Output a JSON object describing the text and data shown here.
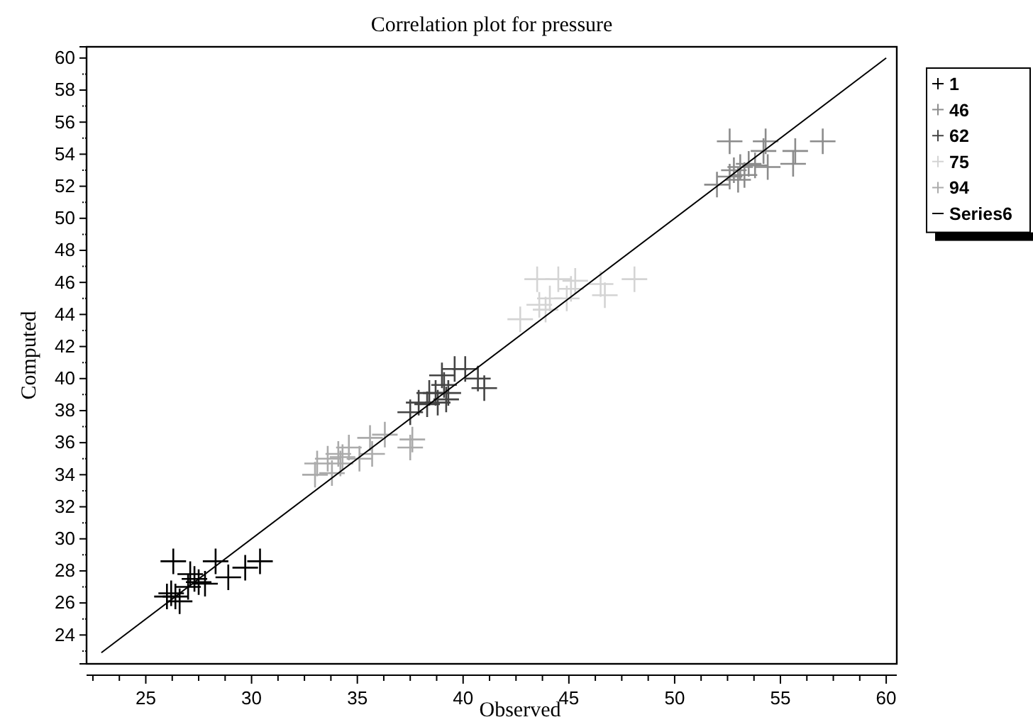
{
  "chart_data": {
    "type": "scatter",
    "title": "Correlation plot for pressure",
    "xlabel": "Observed",
    "ylabel": "Computed",
    "marker": "cross",
    "legend": "top right",
    "grid": false,
    "xlim": [
      22.2,
      60.5
    ],
    "ylim": [
      22.2,
      60.7
    ],
    "xticks": [
      {
        "value": 22.5,
        "label": null
      },
      {
        "value": 23.75,
        "label": null
      },
      25,
      {
        "value": 26.25,
        "label": null
      },
      {
        "value": 27.5,
        "label": null
      },
      {
        "value": 28.75,
        "label": null
      },
      30,
      {
        "value": 31.25,
        "label": null
      },
      {
        "value": 32.5,
        "label": null
      },
      {
        "value": 33.75,
        "label": null
      },
      35,
      {
        "value": 36.25,
        "label": null
      },
      {
        "value": 37.5,
        "label": null
      },
      {
        "value": 38.75,
        "label": null
      },
      40,
      {
        "value": 41.25,
        "label": null
      },
      {
        "value": 42.5,
        "label": null
      },
      {
        "value": 43.75,
        "label": null
      },
      45,
      {
        "value": 46.25,
        "label": null
      },
      {
        "value": 47.5,
        "label": null
      },
      {
        "value": 48.75,
        "label": null
      },
      50,
      {
        "value": 51.25,
        "label": null
      },
      {
        "value": 52.5,
        "label": null
      },
      {
        "value": 53.75,
        "label": null
      },
      55,
      {
        "value": 56.25,
        "label": null
      },
      {
        "value": 57.5,
        "label": null
      },
      {
        "value": 58.75,
        "label": null
      },
      60
    ],
    "yticks": [
      {
        "value": 23,
        "label": null
      },
      24,
      {
        "value": 25,
        "label": null
      },
      26,
      {
        "value": 27,
        "label": null
      },
      28,
      {
        "value": 29,
        "label": null
      },
      30,
      {
        "value": 31,
        "label": null
      },
      32,
      {
        "value": 33,
        "label": null
      },
      34,
      {
        "value": 35,
        "label": null
      },
      36,
      {
        "value": 37,
        "label": null
      },
      38,
      {
        "value": 39,
        "label": null
      },
      40,
      {
        "value": 41,
        "label": null
      },
      42,
      {
        "value": 43,
        "label": null
      },
      44,
      {
        "value": 45,
        "label": null
      },
      46,
      {
        "value": 47,
        "label": null
      },
      48,
      {
        "value": 49,
        "label": null
      },
      50,
      {
        "value": 51,
        "label": null
      },
      52,
      {
        "value": 53,
        "label": null
      },
      54,
      {
        "value": 55,
        "label": null
      },
      56,
      {
        "value": 57,
        "label": null
      },
      58,
      {
        "value": 59,
        "label": null
      },
      60
    ],
    "series": [
      {
        "name": "1",
        "color": "#000000",
        "x": [
          26.3,
          28.3,
          30.4,
          29.7,
          28.9,
          27.1,
          27.5,
          27.0,
          26.4,
          26.6,
          26.2,
          27.8,
          27.3,
          26.0
        ],
        "values": [
          28.6,
          28.6,
          28.6,
          28.2,
          27.6,
          27.8,
          27.3,
          27.0,
          26.4,
          26.1,
          26.6,
          27.2,
          27.5,
          26.4
        ]
      },
      {
        "name": "46",
        "color": "#8c8c8c",
        "x": [
          52.6,
          54.3,
          54.2,
          57.0,
          55.7,
          55.6,
          52.0,
          52.8,
          53.1,
          53.5,
          53.8,
          53.0,
          53.3,
          54.4,
          52.6
        ],
        "values": [
          54.8,
          54.8,
          54.2,
          54.8,
          54.2,
          53.4,
          52.1,
          53.0,
          53.2,
          53.4,
          53.3,
          52.4,
          52.7,
          53.2,
          52.6
        ]
      },
      {
        "name": "62",
        "color": "#444444",
        "x": [
          37.5,
          37.9,
          38.3,
          38.7,
          39.1,
          39.2,
          39.0,
          39.6,
          40.1,
          40.7,
          41.0,
          39.3,
          38.8,
          38.4
        ],
        "values": [
          37.9,
          38.5,
          38.4,
          39.1,
          39.6,
          38.7,
          40.2,
          40.6,
          40.6,
          40.0,
          39.4,
          39.1,
          38.5,
          39.1
        ]
      },
      {
        "name": "75",
        "color": "#d4d4d4",
        "x": [
          42.7,
          43.6,
          43.5,
          44.5,
          45.3,
          44.1,
          44.9,
          45.1,
          46.5,
          46.7,
          48.1,
          43.9
        ],
        "values": [
          43.7,
          44.6,
          46.2,
          46.2,
          46.1,
          45.0,
          45.0,
          45.6,
          45.9,
          45.2,
          46.2,
          44.3
        ]
      },
      {
        "name": "94",
        "color": "#ababab",
        "x": [
          33.0,
          33.1,
          33.6,
          34.1,
          34.2,
          34.6,
          35.1,
          35.7,
          35.6,
          36.3,
          37.6,
          37.5,
          33.8,
          34.3
        ],
        "values": [
          34.0,
          34.7,
          35.0,
          35.3,
          34.7,
          35.7,
          35.0,
          35.3,
          36.3,
          36.5,
          36.2,
          35.7,
          34.1,
          35.1
        ]
      },
      {
        "name": "Series6",
        "type": "line",
        "marker": "none",
        "color": "#000000",
        "x": [
          22.9,
          60
        ],
        "values": [
          22.9,
          60
        ]
      }
    ]
  }
}
